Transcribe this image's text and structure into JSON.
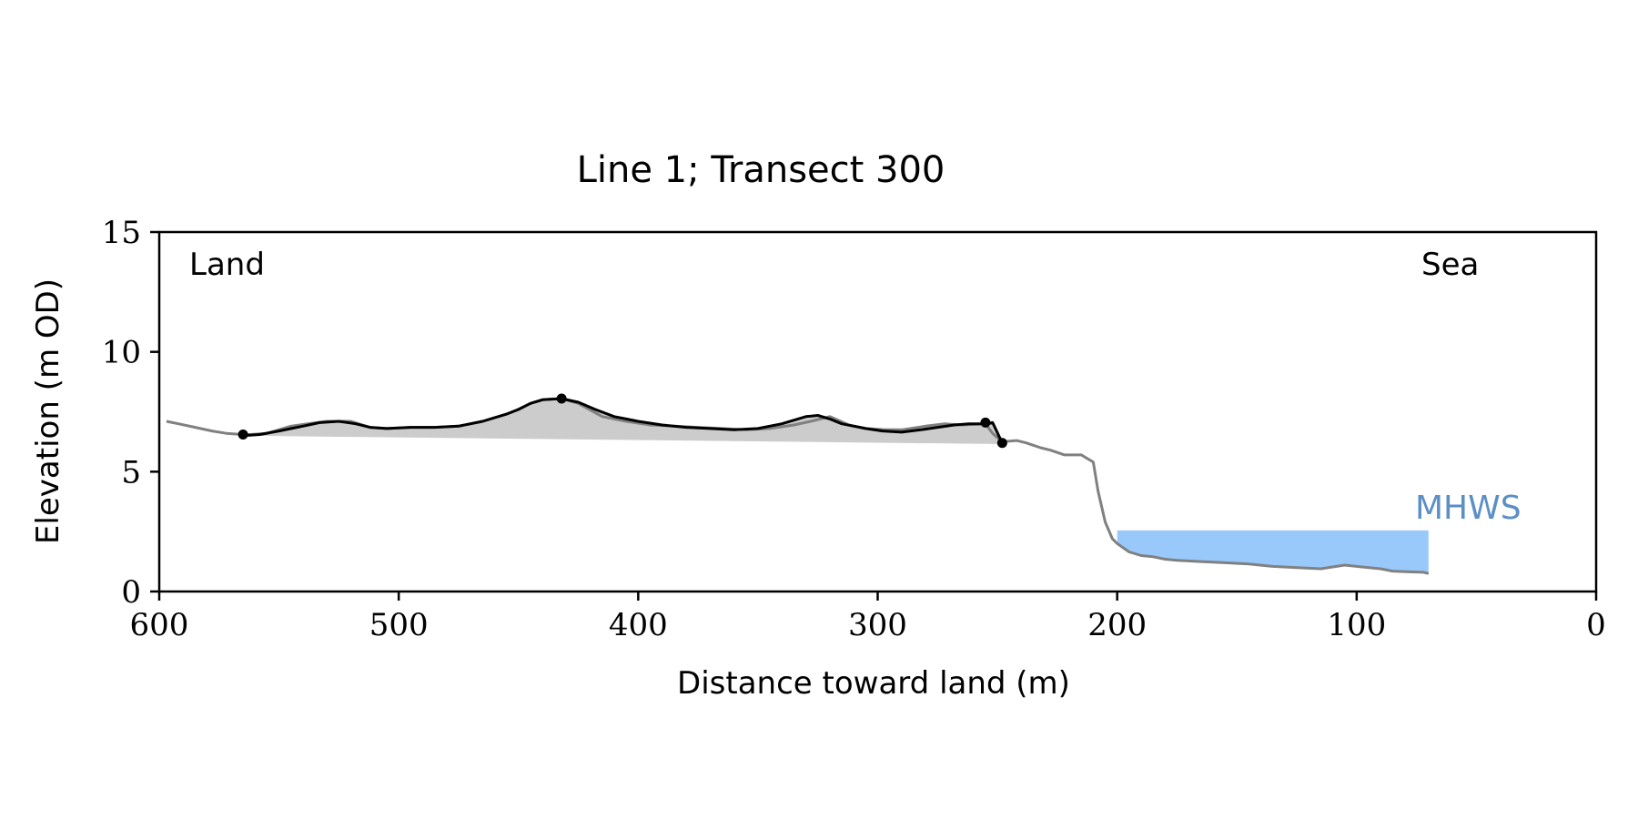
{
  "colors": {
    "dune_fill": "#cccccc",
    "dune_line": "#000000",
    "profile_line": "#808080",
    "mhws_fill": "#99c9fb",
    "mhws_text": "#5b8fc6"
  },
  "chart_data": {
    "type": "area",
    "title": "Line 1; Transect 300",
    "xlabel": "Distance toward land (m)",
    "ylabel": "Elevation (m OD)",
    "xlim": [
      600,
      0
    ],
    "ylim": [
      0,
      15
    ],
    "xticks": [
      600,
      500,
      400,
      300,
      200,
      100,
      0
    ],
    "yticks": [
      0,
      5,
      10,
      15
    ],
    "grid": false,
    "annotations": {
      "land": "Land",
      "sea": "Sea",
      "mhws": "MHWS"
    },
    "series": [
      {
        "role": "full_profile",
        "x": [
          597,
          592,
          585,
          578,
          572,
          565,
          562,
          555,
          545,
          538,
          530,
          520,
          512,
          505,
          495,
          485,
          475,
          465,
          455,
          450,
          445,
          440,
          432,
          425,
          415,
          405,
          395,
          385,
          375,
          365,
          355,
          345,
          335,
          328,
          320,
          312,
          305,
          297,
          290,
          280,
          272,
          265,
          255,
          252,
          248,
          242,
          238,
          232,
          228,
          222,
          215,
          210,
          208,
          205,
          202,
          200,
          195,
          190,
          185,
          180,
          175,
          165,
          155,
          145,
          135,
          125,
          115,
          105,
          95,
          90,
          85,
          78,
          72,
          70
        ],
        "y": [
          7.1,
          7.0,
          6.85,
          6.7,
          6.6,
          6.55,
          6.55,
          6.6,
          6.9,
          7.0,
          7.1,
          7.1,
          6.85,
          6.8,
          6.85,
          6.85,
          6.9,
          7.1,
          7.4,
          7.6,
          7.85,
          8.0,
          8.05,
          7.85,
          7.3,
          7.1,
          6.95,
          6.9,
          6.85,
          6.8,
          6.75,
          6.8,
          6.95,
          7.1,
          7.3,
          6.95,
          6.8,
          6.75,
          6.75,
          6.9,
          7.0,
          6.95,
          7.0,
          6.6,
          6.25,
          6.3,
          6.2,
          6.0,
          5.9,
          5.7,
          5.7,
          5.4,
          4.2,
          2.9,
          2.2,
          2.0,
          1.65,
          1.5,
          1.45,
          1.35,
          1.3,
          1.25,
          1.2,
          1.15,
          1.05,
          1.0,
          0.95,
          1.1,
          1.0,
          0.95,
          0.85,
          0.82,
          0.8,
          0.75
        ]
      },
      {
        "role": "dune",
        "x": [
          565,
          558,
          550,
          540,
          533,
          525,
          518,
          512,
          505,
          495,
          485,
          475,
          465,
          455,
          450,
          445,
          440,
          432,
          425,
          418,
          410,
          405,
          400,
          390,
          380,
          370,
          360,
          350,
          340,
          330,
          325,
          320,
          315,
          310,
          305,
          298,
          290,
          282,
          275,
          268,
          262,
          255,
          252,
          248
        ],
        "y": [
          6.5,
          6.55,
          6.7,
          6.9,
          7.05,
          7.1,
          7.0,
          6.85,
          6.8,
          6.85,
          6.85,
          6.9,
          7.1,
          7.4,
          7.6,
          7.85,
          8.0,
          8.05,
          7.9,
          7.6,
          7.3,
          7.2,
          7.1,
          6.95,
          6.85,
          6.8,
          6.75,
          6.8,
          7.0,
          7.3,
          7.35,
          7.2,
          7.0,
          6.9,
          6.8,
          6.7,
          6.65,
          6.75,
          6.85,
          6.95,
          7.0,
          7.0,
          7.05,
          6.2
        ]
      }
    ],
    "dune_toe_line": {
      "x": [
        565,
        248
      ],
      "y": [
        6.5,
        6.15
      ]
    },
    "markers": {
      "x": [
        565,
        432,
        255,
        248
      ],
      "y": [
        6.55,
        8.05,
        7.05,
        6.2
      ]
    },
    "mhws_band": {
      "x_start": 200,
      "x_end": 70,
      "level": 2.55
    }
  }
}
